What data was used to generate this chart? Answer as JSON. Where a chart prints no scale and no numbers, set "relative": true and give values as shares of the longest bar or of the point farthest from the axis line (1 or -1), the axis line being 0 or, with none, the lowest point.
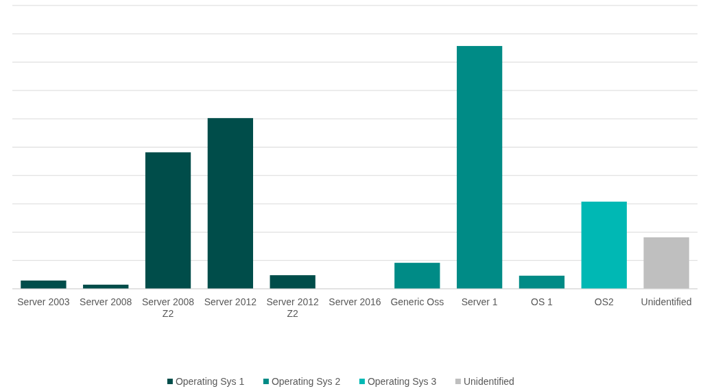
{
  "chart_data": {
    "type": "bar",
    "relative": true,
    "grid": "y",
    "legend": "bottom",
    "categories": [
      "Server 2003",
      "Server 2008",
      "Server 2008 Z2",
      "Server 2012",
      "Server 2012 Z2",
      "Server 2016",
      "Generic Oss",
      "Server 1",
      "OS 1",
      "OS2",
      "Unidentified"
    ],
    "series": [
      {
        "name": "Operating Sys 1",
        "color": "#004d4a",
        "values": [
          0.034,
          0.017,
          0.562,
          0.703,
          0.056,
          0,
          null,
          null,
          null,
          null,
          null
        ]
      },
      {
        "name": "Operating Sys 2",
        "color": "#008b86",
        "values": [
          null,
          null,
          null,
          null,
          null,
          null,
          0.107,
          1,
          0.054,
          null,
          null
        ]
      },
      {
        "name": "Operating Sys 3",
        "color": "#00b8b4",
        "values": [
          null,
          null,
          null,
          null,
          null,
          null,
          null,
          null,
          null,
          0.359,
          null
        ]
      },
      {
        "name": "Unidentified",
        "color": "#bfbfbf",
        "values": [
          null,
          null,
          null,
          null,
          null,
          null,
          null,
          null,
          null,
          null,
          0.212
        ]
      }
    ]
  }
}
